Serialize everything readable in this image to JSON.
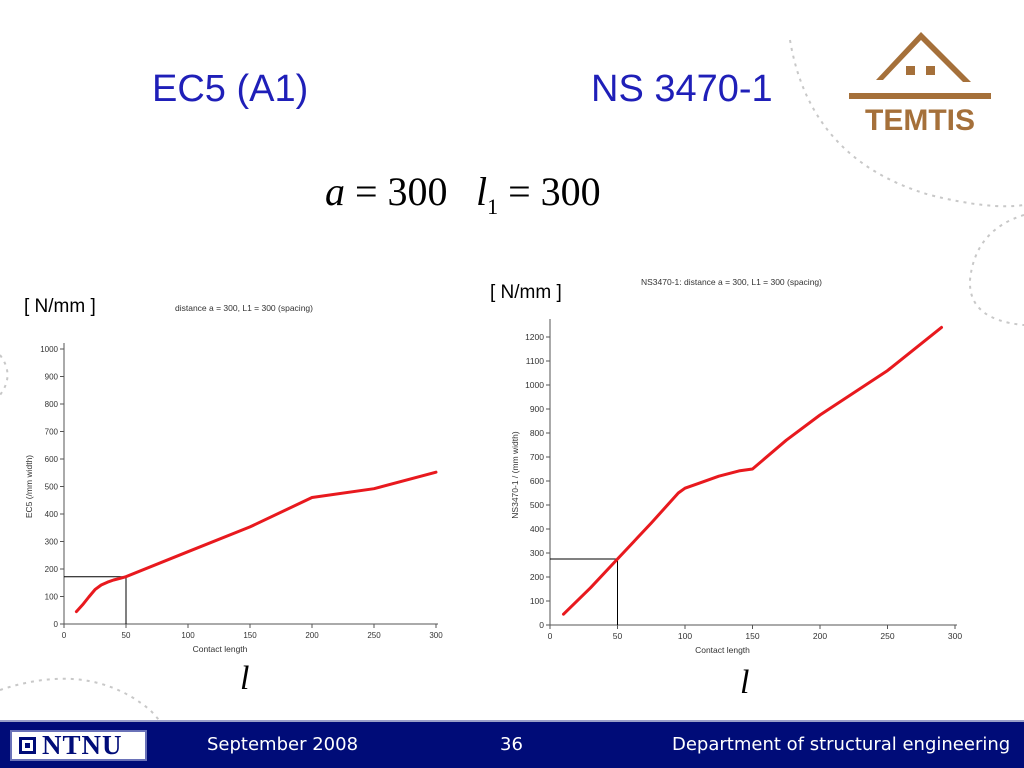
{
  "slide": {
    "title_left": "EC5 (A1)",
    "title_right": "NS 3470-1",
    "formula_a_var": "a",
    "formula_a_rest": " = 300",
    "formula_l_var": "l",
    "formula_l_sub": "1",
    "formula_l_rest": " = 300",
    "unit_left": "[ N/mm ]",
    "unit_right": "[ N/mm ]",
    "var_left": "l",
    "var_right": "l"
  },
  "logo": {
    "text": "TEMTIS",
    "icon": "house-icon",
    "color": "#a5703a"
  },
  "footer": {
    "ntnu": "NTNU",
    "date": "September 2008",
    "page": "36",
    "department": "Department of structural engineering",
    "bg_color": "#000c78"
  },
  "chart_data": [
    {
      "type": "line",
      "title": "distance a = 300, L1 = 300 (spacing)",
      "xlabel": "Contact length",
      "ylabel": "EC5 (/mm width)",
      "xlim": [
        0,
        300
      ],
      "ylim": [
        0,
        1000
      ],
      "xticks": [
        0,
        50,
        100,
        150,
        200,
        250,
        300
      ],
      "yticks": [
        0,
        100,
        200,
        300,
        400,
        500,
        600,
        700,
        800,
        900,
        1000
      ],
      "series": [
        {
          "color": "#e8191e",
          "x": [
            10,
            15,
            20,
            25,
            30,
            35,
            40,
            45,
            50,
            100,
            150,
            200,
            250,
            300
          ],
          "y": [
            45,
            70,
            98,
            125,
            142,
            152,
            160,
            166,
            172,
            263,
            353,
            460,
            492,
            552
          ]
        }
      ],
      "marker": {
        "x": 50,
        "y": 172
      }
    },
    {
      "type": "line",
      "title": "NS3470-1:  distance a = 300, L1 = 300 (spacing)",
      "xlabel": "Contact length",
      "ylabel": "NS3470-1 / (mm width)",
      "xlim": [
        0,
        300
      ],
      "ylim": [
        0,
        1250
      ],
      "xticks": [
        0,
        50,
        100,
        150,
        200,
        250,
        300
      ],
      "yticks": [
        0,
        100,
        200,
        300,
        400,
        500,
        600,
        700,
        800,
        900,
        1000,
        1100,
        1200
      ],
      "series": [
        {
          "color": "#e8191e",
          "x": [
            10,
            30,
            50,
            75,
            95,
            100,
            110,
            125,
            140,
            150,
            175,
            200,
            250,
            290
          ],
          "y": [
            45,
            155,
            275,
            425,
            550,
            570,
            590,
            620,
            642,
            650,
            770,
            875,
            1060,
            1240
          ]
        }
      ],
      "marker": {
        "x": 50,
        "y": 275
      }
    }
  ]
}
